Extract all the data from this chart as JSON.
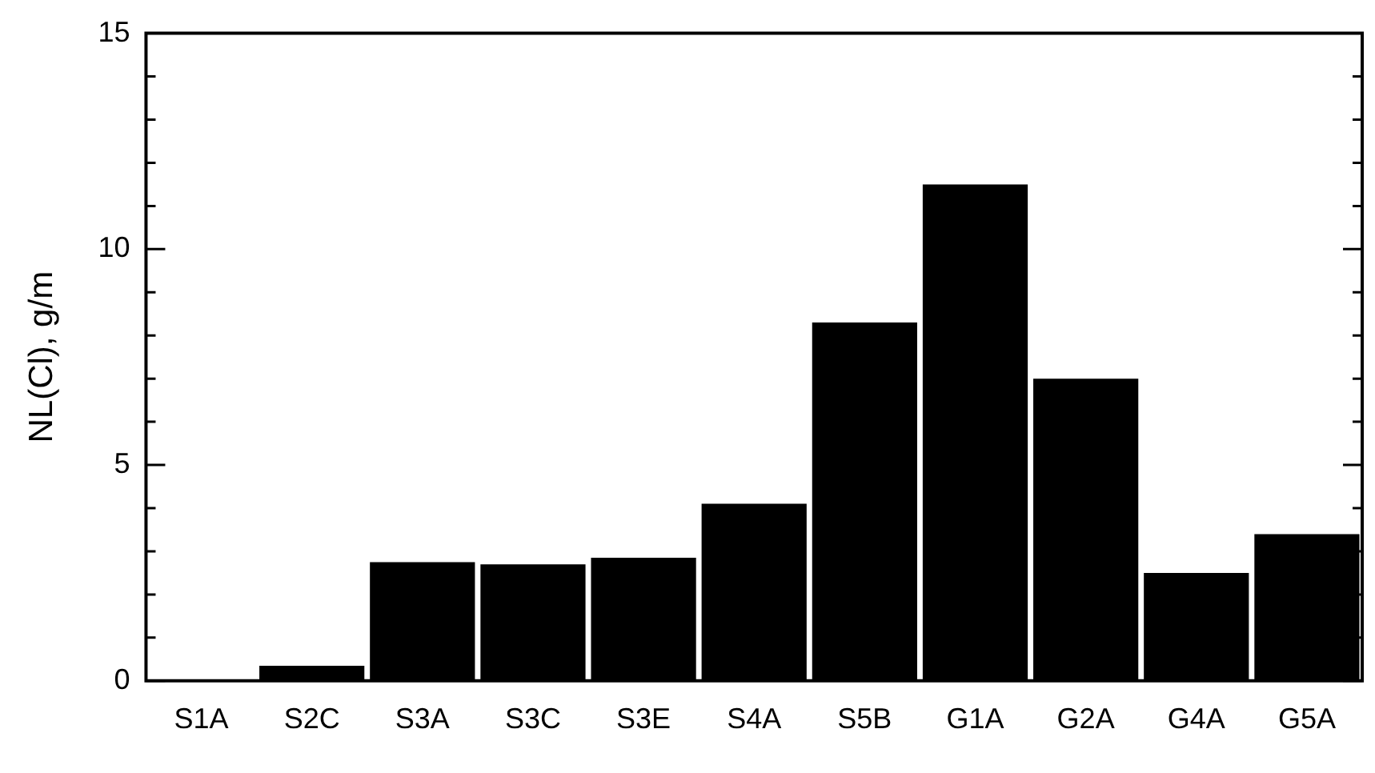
{
  "chart_data": {
    "type": "bar",
    "ylabel": "NL(Cl), g/m",
    "categories": [
      "S1A",
      "S2C",
      "S3A",
      "S3C",
      "S3E",
      "S4A",
      "S5B",
      "G1A",
      "G2A",
      "G4A",
      "G5A"
    ],
    "values": [
      0,
      0.35,
      2.75,
      2.7,
      2.85,
      4.1,
      8.3,
      11.5,
      7.0,
      2.5,
      3.4
    ],
    "color": "#000000",
    "ylim": [
      0,
      15
    ],
    "yticks": [
      0,
      {
        "value": 1,
        "label": null
      },
      {
        "value": 2,
        "label": null
      },
      {
        "value": 3,
        "label": null
      },
      {
        "value": 4,
        "label": null
      },
      5,
      {
        "value": 6,
        "label": null
      },
      {
        "value": 7,
        "label": null
      },
      {
        "value": 8,
        "label": null
      },
      {
        "value": 9,
        "label": null
      },
      10,
      {
        "value": 11,
        "label": null
      },
      {
        "value": 12,
        "label": null
      },
      {
        "value": 13,
        "label": null
      },
      {
        "value": 14,
        "label": null
      },
      15
    ],
    "grid": false,
    "legend": false
  }
}
